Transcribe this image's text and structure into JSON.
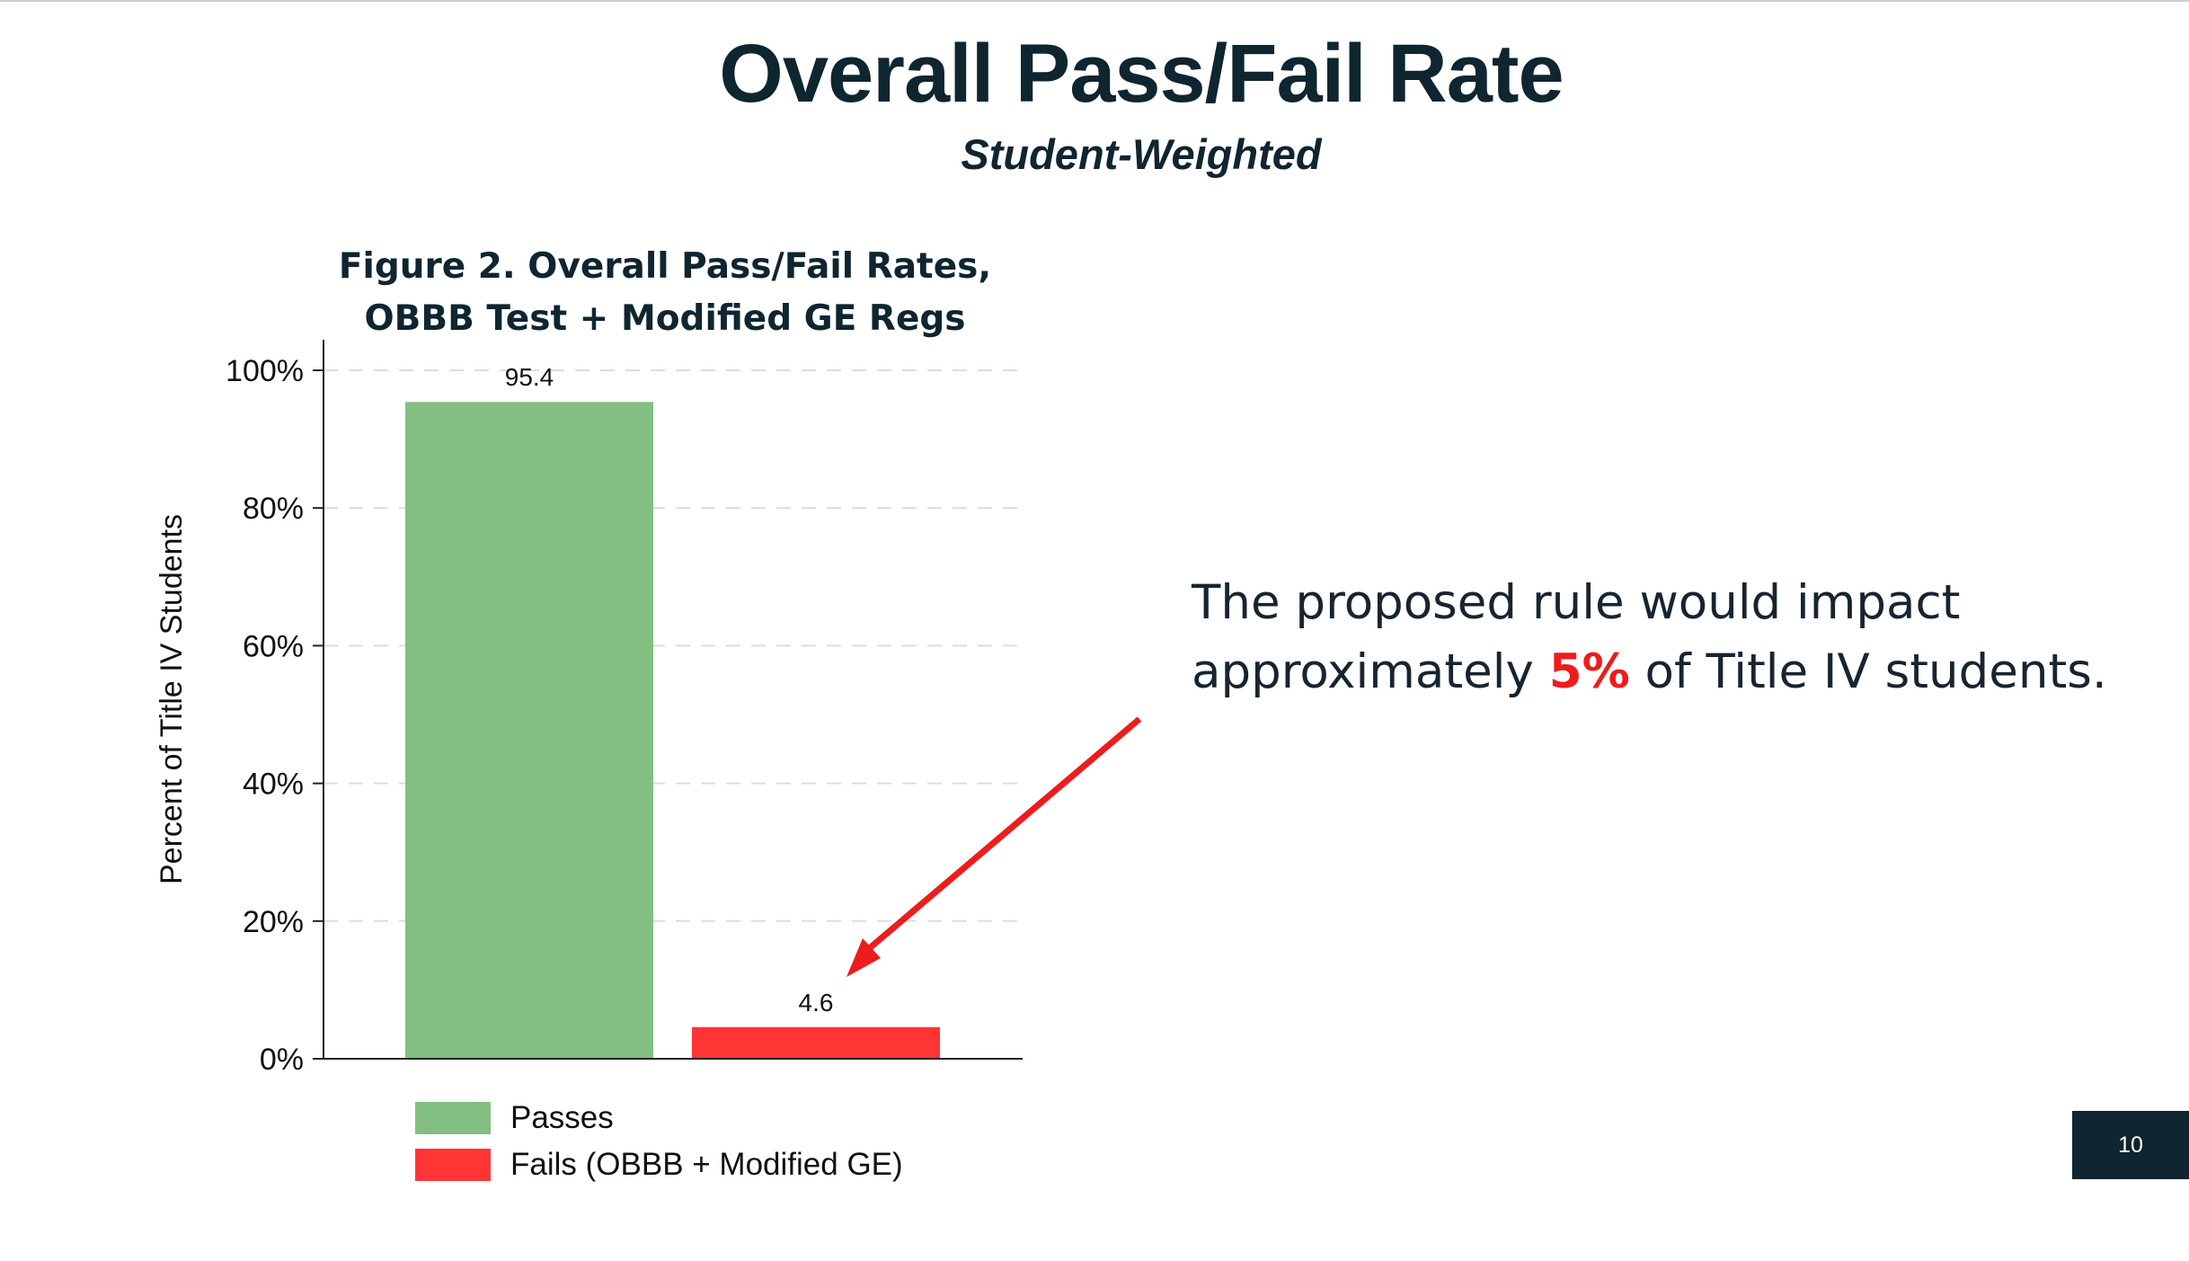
{
  "slide": {
    "title": "Overall Pass/Fail Rate",
    "subtitle": "Student-Weighted",
    "page_number": "10"
  },
  "callout": {
    "text_before": "The proposed rule would impact approximately ",
    "highlight": "5%",
    "text_after": " of Title IV students.",
    "highlight_color": "#ee1c1c"
  },
  "chart_data": {
    "type": "bar",
    "title_lines": [
      "Figure 2. Overall Pass/Fail Rates,",
      "OBBB Test + Modified GE Regs"
    ],
    "ylabel": "Percent of Title IV Students",
    "xlabel": "",
    "ylim": [
      0,
      100
    ],
    "yticks": [
      0,
      20,
      40,
      60,
      80,
      100
    ],
    "ytick_labels": [
      "0%",
      "20%",
      "40%",
      "60%",
      "80%",
      "100%"
    ],
    "grid": true,
    "legend_position": "bottom",
    "categories": [
      "Passes",
      "Fails (OBBB + Modified GE)"
    ],
    "values": [
      95.4,
      4.6
    ],
    "data_labels": [
      "95.4",
      "4.6"
    ],
    "colors": [
      "#82bf81",
      "#ff3535"
    ],
    "annotation": "arrow from callout text pointing to the Fails bar",
    "annotation_color": "#ee1c1c"
  }
}
